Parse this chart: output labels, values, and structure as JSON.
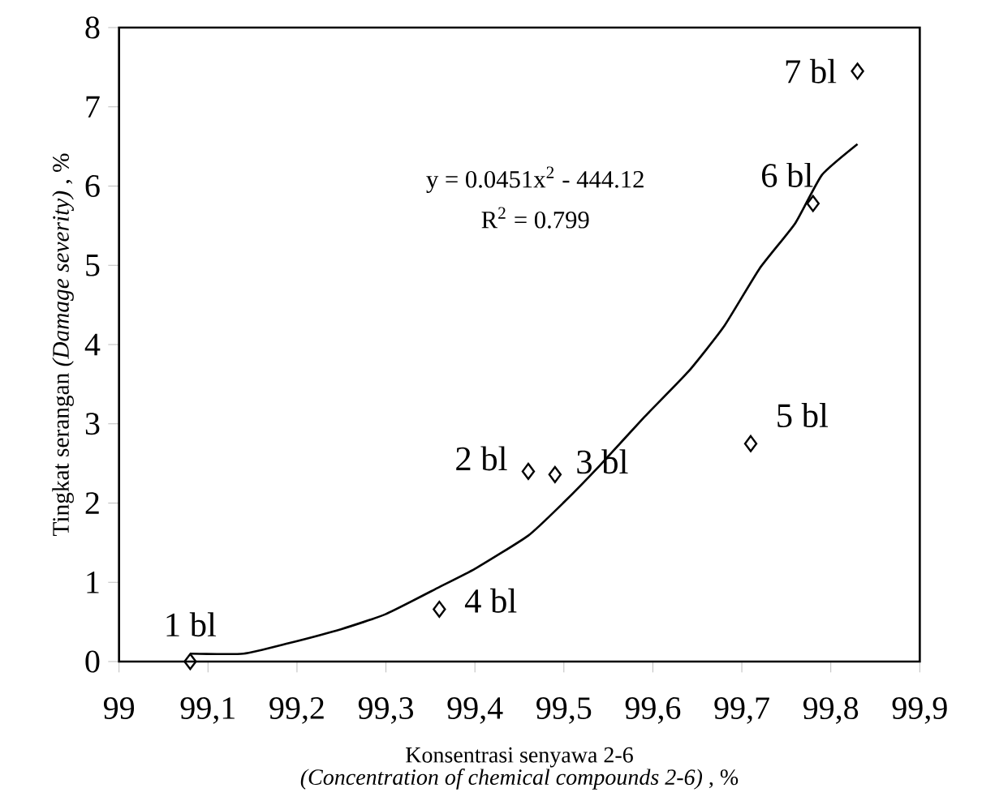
{
  "chart_data": {
    "type": "scatter",
    "xlabel": "Konsentrasi senyawa 2-6",
    "ylabel": "Tingkat serangan *(Damage severity)* , %",
    "xlim": [
      99,
      99.9
    ],
    "ylim": [
      0,
      8
    ],
    "xticks": [
      99,
      {
        "value": 99.1,
        "label": "99,1"
      },
      {
        "value": 99.2,
        "label": "99,2"
      },
      {
        "value": 99.3,
        "label": "99,3"
      },
      {
        "value": 99.4,
        "label": "99,4"
      },
      {
        "value": 99.5,
        "label": "99,5"
      },
      {
        "value": 99.6,
        "label": "99,6"
      },
      {
        "value": 99.7,
        "label": "99,7"
      },
      {
        "value": 99.8,
        "label": "99,8"
      },
      {
        "value": 99.9,
        "label": "99,9"
      }
    ],
    "yticks": [
      0,
      1,
      2,
      3,
      4,
      5,
      6,
      7,
      8
    ],
    "grid": false,
    "series": [
      {
        "type": "scatter",
        "marker": "diamond",
        "color": "#000000",
        "x": [
          99.08,
          99.36,
          99.46,
          99.49,
          99.71,
          99.78,
          99.83
        ],
        "values": [
          0,
          0.66,
          2.4,
          2.36,
          2.75,
          5.78,
          7.45
        ]
      },
      {
        "type": "line",
        "marker": "none",
        "color": "#000000",
        "x": [
          99.08,
          99.14,
          99.19,
          99.25,
          99.3,
          99.36,
          99.4,
          99.46,
          99.5,
          99.54,
          99.59,
          99.64,
          99.68,
          99.72,
          99.76,
          99.79,
          99.83
        ],
        "values": [
          0.1,
          0.1,
          0.23,
          0.41,
          0.6,
          0.94,
          1.17,
          1.59,
          2.01,
          2.47,
          3.08,
          3.66,
          4.23,
          4.96,
          5.53,
          6.14,
          6.53
        ]
      }
    ],
    "annotations": [
      {
        "text": "1 bl",
        "x": 99.08,
        "y": 0
      },
      {
        "text": "4 bl",
        "x": 99.36,
        "y": 0.66
      },
      {
        "text": "2 bl",
        "x": 99.46,
        "y": 2.4
      },
      {
        "text": "3 bl",
        "x": 99.49,
        "y": 2.36
      },
      {
        "text": "5 bl",
        "x": 99.71,
        "y": 2.75
      },
      {
        "text": "6 bl",
        "x": 99.78,
        "y": 5.78
      },
      {
        "text": "7 bl",
        "x": 99.83,
        "y": 7.45
      },
      "y = 0.0451x$^{2}$  - 444.12",
      "R$^{2}$ = 0.799",
      "*(Concentration of chemical compounds 2-6)* , %"
    ]
  }
}
